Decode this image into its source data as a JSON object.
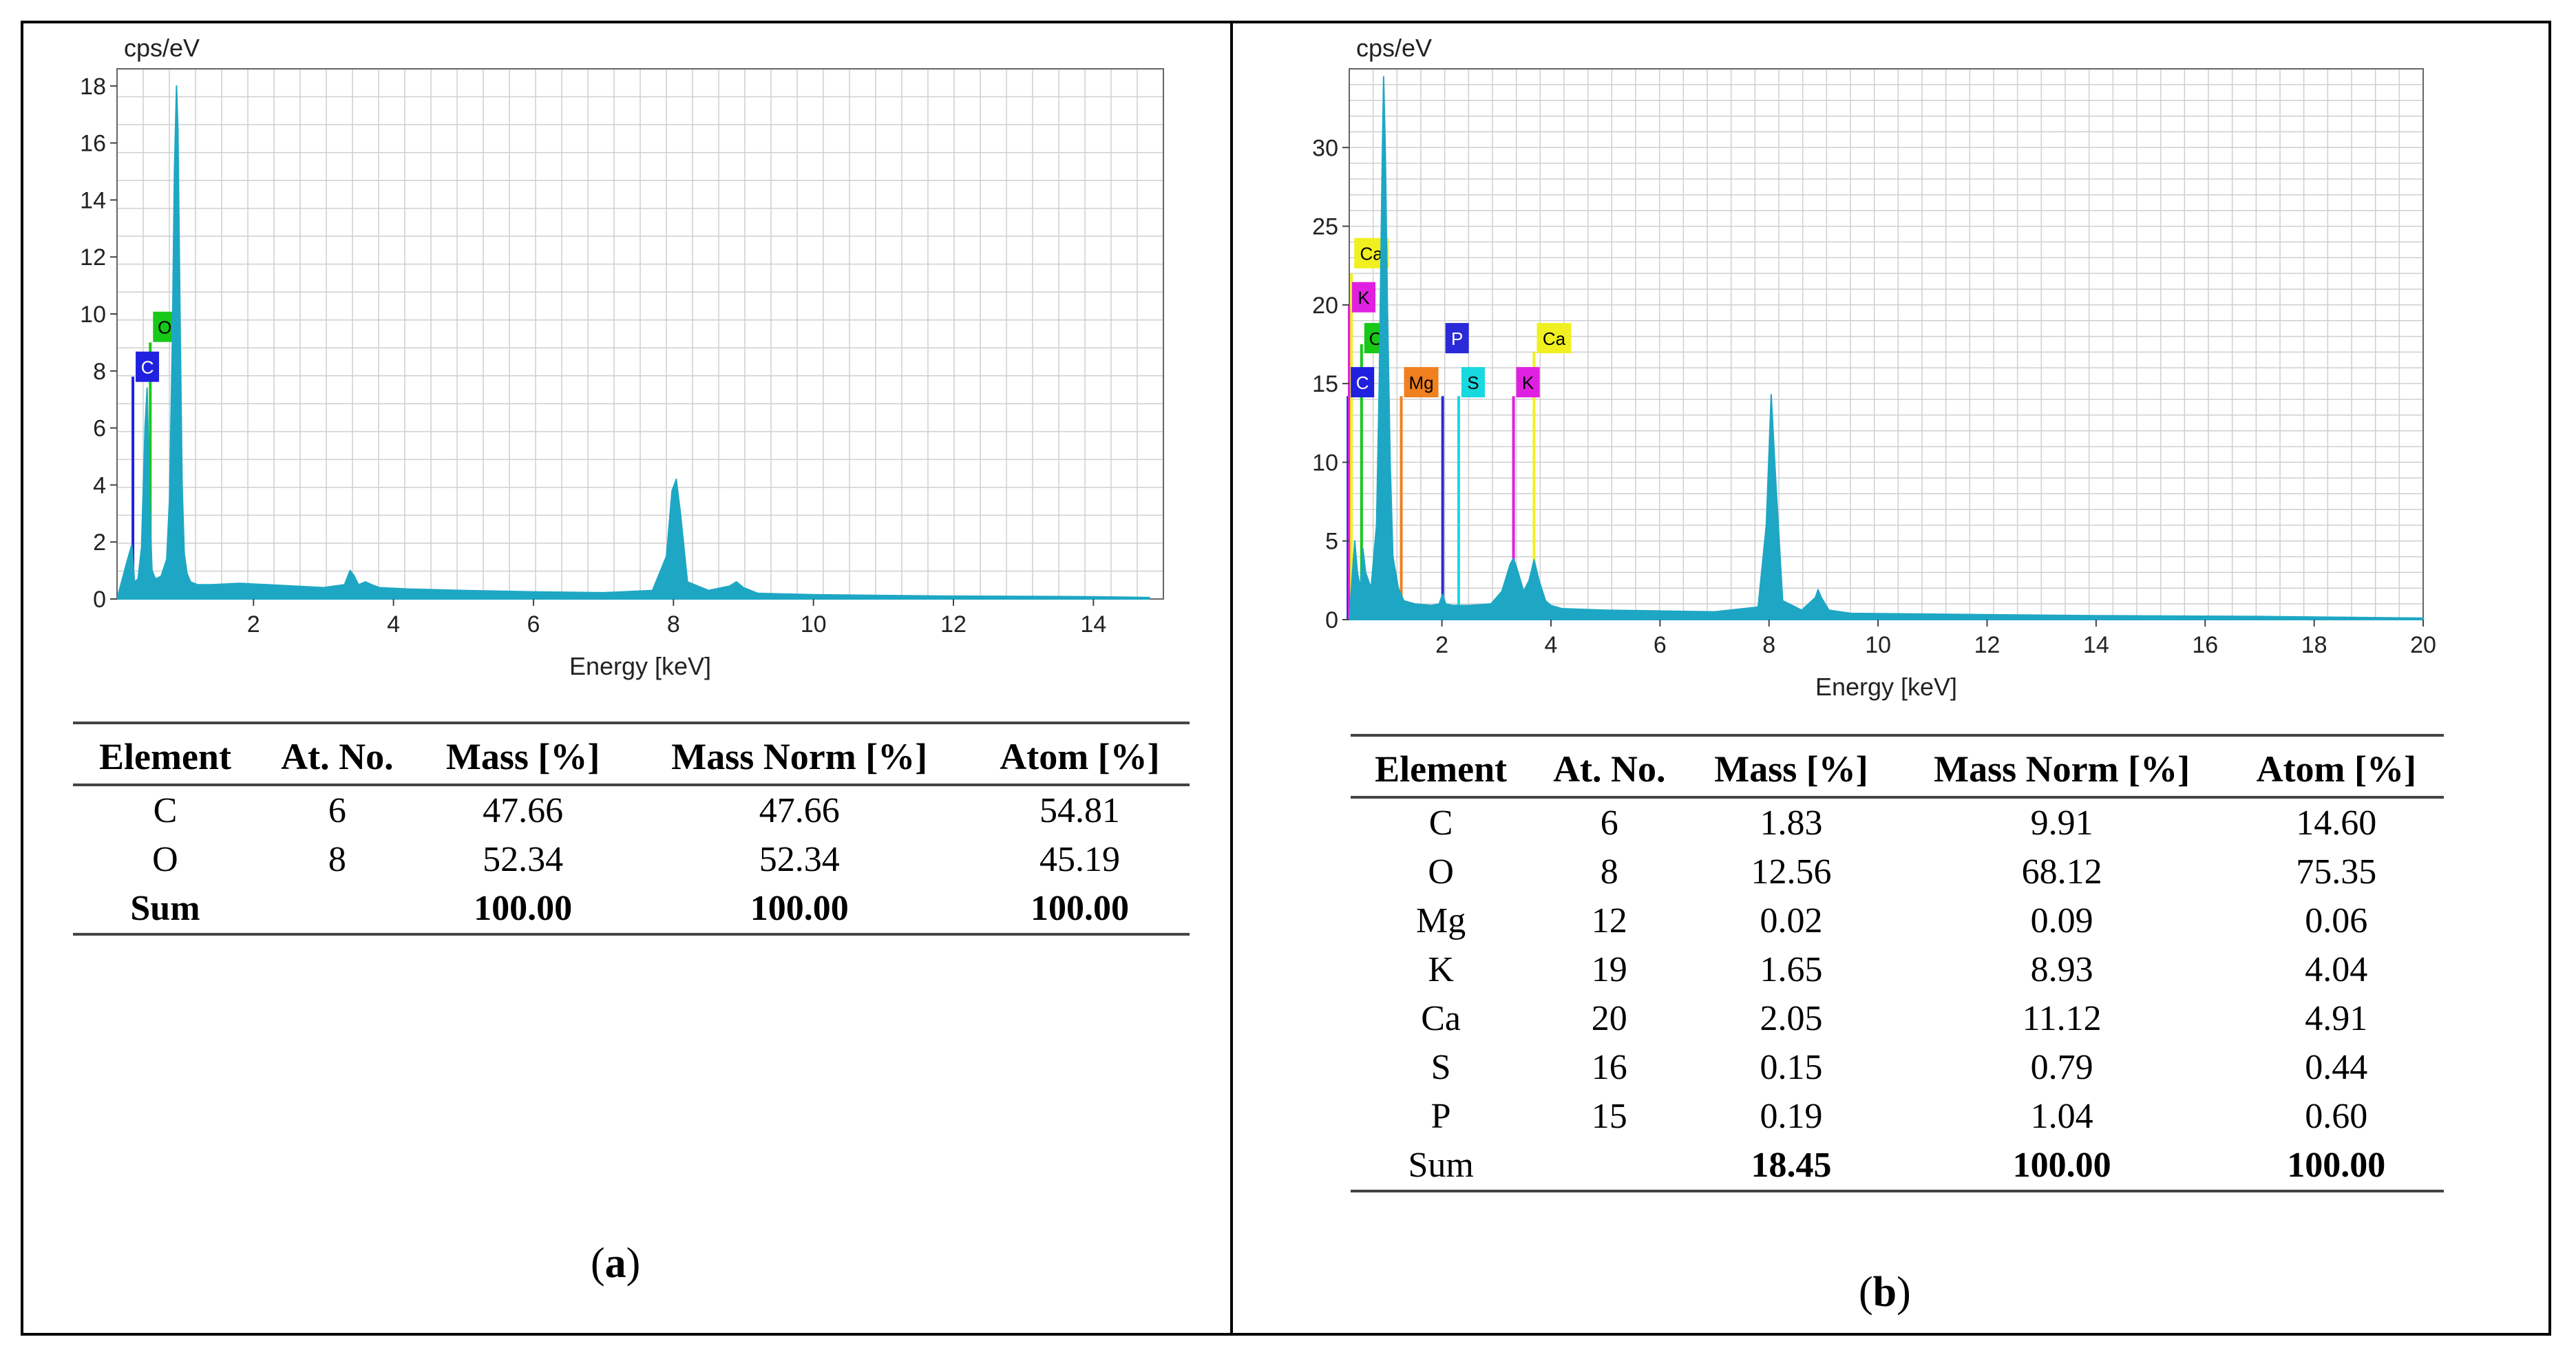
{
  "colors": {
    "spectrum": "#1ea7c4",
    "grid": "#cfcfcf",
    "C": "#2020e0",
    "O": "#18c818",
    "Mg": "#f08020",
    "P": "#2a2ad8",
    "S": "#18d8e0",
    "K": "#e020e0",
    "Ca": "#f0f020"
  },
  "chart_data": [
    {
      "type": "line",
      "panel": "a",
      "ylabel": "cps/eV",
      "xlabel": "Energy [keV]",
      "xlim": [
        0.05,
        15
      ],
      "ylim": [
        0,
        18.6
      ],
      "xticks": [
        2,
        4,
        6,
        8,
        10,
        12,
        14
      ],
      "yticks": [
        0,
        2,
        4,
        6,
        8,
        10,
        12,
        14,
        16,
        18
      ],
      "series": [
        {
          "name": "spectrum",
          "x": [
            0.05,
            0.18,
            0.26,
            0.3,
            0.35,
            0.4,
            0.45,
            0.48,
            0.52,
            0.55,
            0.6,
            0.68,
            0.76,
            0.8,
            0.84,
            0.87,
            0.9,
            0.92,
            0.95,
            0.98,
            1.01,
            1.05,
            1.1,
            1.2,
            1.4,
            1.8,
            2.2,
            2.6,
            3.0,
            3.3,
            3.38,
            3.44,
            3.5,
            3.6,
            3.69,
            3.8,
            4.2,
            5.0,
            6.0,
            7.0,
            7.7,
            7.9,
            7.98,
            8.04,
            8.1,
            8.2,
            8.5,
            8.8,
            8.9,
            9.0,
            9.2,
            10.0,
            12.0,
            14.0,
            14.8
          ],
          "values": [
            0,
            1.2,
            1.9,
            0.6,
            0.7,
            1.8,
            6.0,
            7.4,
            3.0,
            1.0,
            0.7,
            0.8,
            1.4,
            3.5,
            9.0,
            15.0,
            18.0,
            16.5,
            10.0,
            4.0,
            1.6,
            0.9,
            0.6,
            0.5,
            0.5,
            0.55,
            0.5,
            0.45,
            0.4,
            0.5,
            1.0,
            0.8,
            0.5,
            0.6,
            0.5,
            0.4,
            0.35,
            0.3,
            0.25,
            0.22,
            0.3,
            1.5,
            3.8,
            4.2,
            3.0,
            0.6,
            0.3,
            0.45,
            0.6,
            0.4,
            0.2,
            0.15,
            0.1,
            0.08,
            0.05
          ]
        }
      ],
      "markers": [
        {
          "element": "C",
          "energy": 0.277,
          "line_top": 7.8,
          "label_y": 8.1
        },
        {
          "element": "O",
          "energy": 0.525,
          "line_top": 9.0,
          "label_y": 9.5
        }
      ]
    },
    {
      "type": "line",
      "panel": "b",
      "ylabel": "cps/eV",
      "xlabel": "Energy [keV]",
      "xlim": [
        0.3,
        20
      ],
      "ylim": [
        0,
        35
      ],
      "xticks": [
        2,
        4,
        6,
        8,
        10,
        12,
        14,
        16,
        18,
        20
      ],
      "yticks": [
        0,
        5,
        10,
        15,
        20,
        25,
        30
      ],
      "series": [
        {
          "name": "spectrum",
          "x": [
            0.3,
            0.4,
            0.45,
            0.5,
            0.55,
            0.6,
            0.7,
            0.8,
            0.85,
            0.9,
            0.93,
            0.96,
            1.0,
            1.05,
            1.1,
            1.2,
            1.3,
            1.5,
            1.8,
            1.95,
            2.01,
            2.07,
            2.2,
            2.5,
            2.9,
            3.1,
            3.25,
            3.31,
            3.38,
            3.5,
            3.6,
            3.69,
            3.78,
            3.9,
            4.0,
            4.2,
            5.0,
            6.0,
            7.0,
            7.8,
            7.95,
            8.04,
            8.12,
            8.25,
            8.6,
            8.85,
            8.9,
            8.96,
            9.1,
            9.5,
            11.0,
            14.0,
            17.0,
            20.0
          ],
          "values": [
            0,
            5.0,
            3.0,
            2.0,
            4.5,
            3.0,
            2.0,
            6.0,
            15.0,
            28.0,
            34.5,
            30.0,
            20.0,
            10.0,
            4.0,
            2.0,
            1.2,
            1.0,
            0.9,
            1.0,
            1.6,
            1.0,
            0.9,
            0.9,
            1.0,
            1.8,
            3.5,
            3.9,
            3.2,
            1.8,
            2.5,
            3.8,
            2.5,
            1.2,
            0.9,
            0.7,
            0.6,
            0.55,
            0.5,
            0.8,
            6.0,
            14.3,
            9.0,
            1.2,
            0.6,
            1.4,
            1.9,
            1.4,
            0.6,
            0.4,
            0.35,
            0.25,
            0.2,
            0.1
          ]
        }
      ],
      "markers": [
        {
          "element": "C",
          "energy": 0.277,
          "line_top": 14.2,
          "label_y": 15.0
        },
        {
          "element": "O",
          "energy": 0.525,
          "line_top": 17.5,
          "label_y": 17.8
        },
        {
          "element": "Mg",
          "energy": 1.254,
          "line_top": 14.2,
          "label_y": 15.0
        },
        {
          "element": "P",
          "energy": 2.013,
          "line_top": 14.2,
          "label_y": 17.8
        },
        {
          "element": "S",
          "energy": 2.307,
          "line_top": 14.2,
          "label_y": 15.0
        },
        {
          "element": "K",
          "energy": 3.313,
          "line_top": 14.2,
          "label_y": 15.0
        },
        {
          "element": "Ca",
          "energy": 3.69,
          "line_top": 17.0,
          "label_y": 17.8
        },
        {
          "element": "K",
          "energy": 0.3,
          "line_top": 20.0,
          "label_y": 20.4
        },
        {
          "element": "Ca",
          "energy": 0.34,
          "line_top": 22.0,
          "label_y": 23.2
        }
      ]
    }
  ],
  "table_a": {
    "headers": [
      "Element",
      "At. No.",
      "Mass [%]",
      "Mass Norm [%]",
      "Atom [%]"
    ],
    "rows": [
      [
        "C",
        "6",
        "47.66",
        "47.66",
        "54.81"
      ],
      [
        "O",
        "8",
        "52.34",
        "52.34",
        "45.19"
      ]
    ],
    "sum": [
      "Sum",
      "",
      "100.00",
      "100.00",
      "100.00"
    ]
  },
  "table_b": {
    "headers": [
      "Element",
      "At. No.",
      "Mass [%]",
      "Mass Norm [%]",
      "Atom [%]"
    ],
    "rows": [
      [
        "C",
        "6",
        "1.83",
        "9.91",
        "14.60"
      ],
      [
        "O",
        "8",
        "12.56",
        "68.12",
        "75.35"
      ],
      [
        "Mg",
        "12",
        "0.02",
        "0.09",
        "0.06"
      ],
      [
        "K",
        "19",
        "1.65",
        "8.93",
        "4.04"
      ],
      [
        "Ca",
        "20",
        "2.05",
        "11.12",
        "4.91"
      ],
      [
        "S",
        "16",
        "0.15",
        "0.79",
        "0.44"
      ],
      [
        "P",
        "15",
        "0.19",
        "1.04",
        "0.60"
      ]
    ],
    "sum": [
      "Sum",
      "",
      "18.45",
      "100.00",
      "100.00"
    ]
  },
  "captions": {
    "a_open": "(",
    "a_letter": "a",
    "a_close": ")",
    "b_open": "(",
    "b_letter": "b",
    "b_close": ")"
  }
}
